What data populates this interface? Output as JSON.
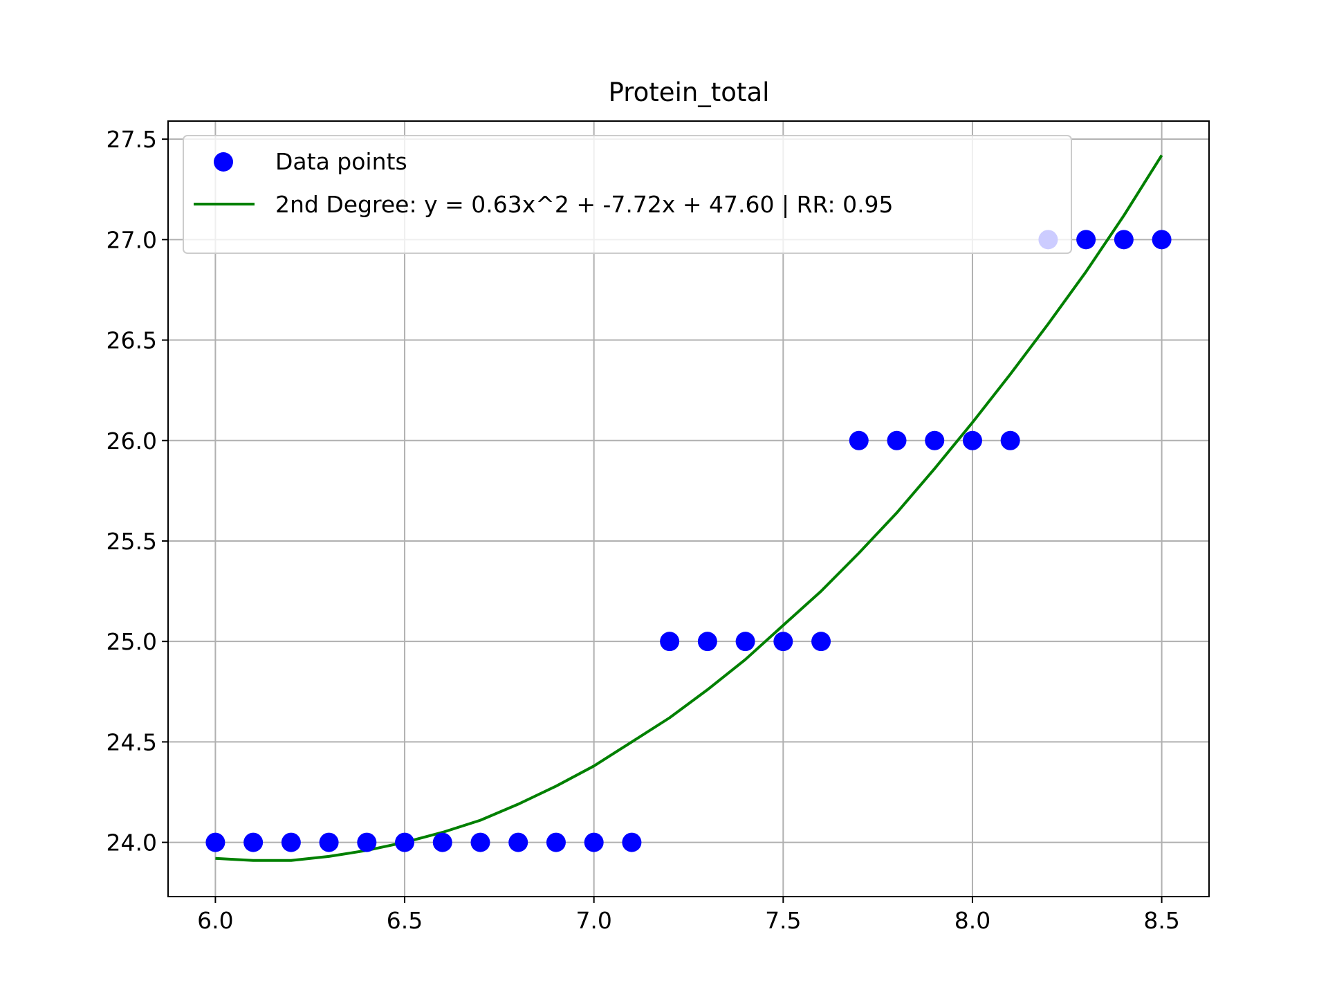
{
  "chart_data": {
    "type": "scatter",
    "title": "Protein_total",
    "xlabel": "",
    "ylabel": "",
    "xlim": [
      5.875,
      8.625
    ],
    "ylim": [
      23.73,
      27.59
    ],
    "xticks": [
      6.0,
      6.5,
      7.0,
      7.5,
      8.0,
      8.5
    ],
    "xtick_labels": [
      "6.0",
      "6.5",
      "7.0",
      "7.5",
      "8.0",
      "8.5"
    ],
    "yticks": [
      24.0,
      24.5,
      25.0,
      25.5,
      26.0,
      26.5,
      27.0,
      27.5
    ],
    "ytick_labels": [
      "24.0",
      "24.5",
      "25.0",
      "25.5",
      "26.0",
      "26.5",
      "27.0",
      "27.5"
    ],
    "grid": true,
    "legend_position": "top-left",
    "series": [
      {
        "name": "Data points",
        "kind": "scatter",
        "color": "#0000ff",
        "x": [
          6.0,
          6.1,
          6.2,
          6.3,
          6.4,
          6.5,
          6.6,
          6.7,
          6.8,
          6.9,
          7.0,
          7.1,
          7.2,
          7.3,
          7.4,
          7.5,
          7.6,
          7.7,
          7.8,
          7.9,
          8.0,
          8.1,
          8.2,
          8.3,
          8.4,
          8.5
        ],
        "y": [
          24,
          24,
          24,
          24,
          24,
          24,
          24,
          24,
          24,
          24,
          24,
          24,
          25,
          25,
          25,
          25,
          25,
          26,
          26,
          26,
          26,
          26,
          27,
          27,
          27,
          27
        ]
      },
      {
        "name": "2nd Degree: y = 0.63x^2 + -7.72x + 47.60 | RR: 0.95",
        "kind": "line",
        "color": "#008000",
        "x": [
          6.0,
          6.1,
          6.2,
          6.3,
          6.4,
          6.5,
          6.6,
          6.7,
          6.8,
          6.9,
          7.0,
          7.1,
          7.2,
          7.3,
          7.4,
          7.5,
          7.6,
          7.7,
          7.8,
          7.9,
          8.0,
          8.1,
          8.2,
          8.3,
          8.4,
          8.5
        ],
        "y": [
          23.92,
          23.91,
          23.91,
          23.93,
          23.96,
          24.0,
          24.05,
          24.11,
          24.19,
          24.28,
          24.38,
          24.5,
          24.62,
          24.76,
          24.91,
          25.08,
          25.25,
          25.44,
          25.64,
          25.86,
          26.09,
          26.33,
          26.58,
          26.84,
          27.12,
          27.42
        ]
      }
    ]
  }
}
